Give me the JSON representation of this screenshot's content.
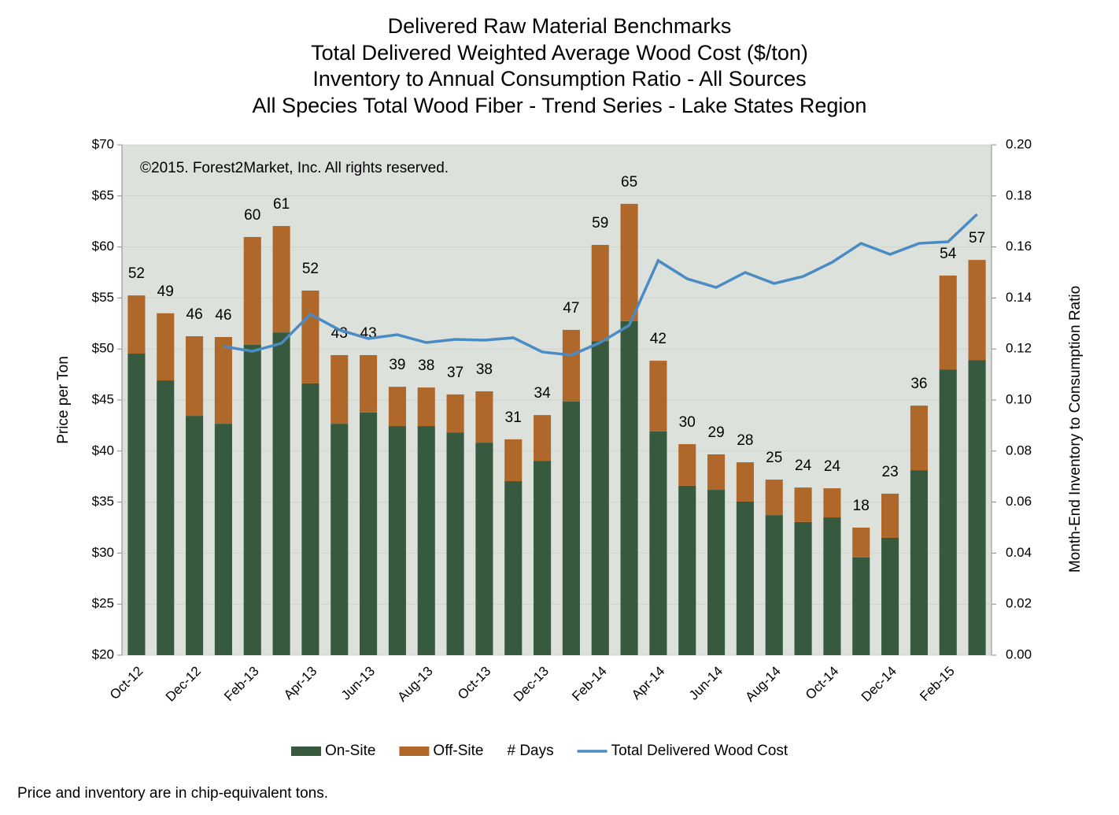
{
  "chart_data": {
    "type": "bar_line",
    "title": [
      "Delivered Raw Material Benchmarks",
      "Total Delivered Weighted Average Wood Cost ($/ton)",
      "Inventory to Annual Consumption Ratio - All Sources",
      "All Species Total Wood Fiber - Trend Series - Lake States Region"
    ],
    "annotation": "©2015. Forest2Market, Inc. All rights reserved.",
    "footnote": "Price and inventory are in chip-equivalent tons.",
    "ylabel": "Price per Ton",
    "y2label": "Month-End Inventory to Consumption Ratio",
    "categories": [
      "Oct-12",
      null,
      "Dec-12",
      null,
      "Feb-13",
      null,
      "Apr-13",
      null,
      "Jun-13",
      null,
      "Aug-13",
      null,
      "Oct-13",
      null,
      "Dec-13",
      null,
      "Feb-14",
      null,
      "Apr-14",
      null,
      "Jun-14",
      null,
      "Aug-14",
      null,
      "Oct-14",
      null,
      "Dec-14",
      null,
      "Feb-15",
      null
    ],
    "ylim": [
      20,
      70
    ],
    "yticks": [
      {
        "value": 20,
        "label": "$20"
      },
      {
        "value": 25,
        "label": "$25"
      },
      {
        "value": 30,
        "label": "$30"
      },
      {
        "value": 35,
        "label": "$35"
      },
      {
        "value": 40,
        "label": "$40"
      },
      {
        "value": 45,
        "label": "$45"
      },
      {
        "value": 50,
        "label": "$50"
      },
      {
        "value": 55,
        "label": "$55"
      },
      {
        "value": 60,
        "label": "$60"
      },
      {
        "value": 65,
        "label": "$65"
      },
      {
        "value": 70,
        "label": "$70"
      }
    ],
    "y2lim": [
      0,
      0.2
    ],
    "y2ticks": [
      {
        "value": 0,
        "label": "0.00"
      },
      {
        "value": 0.02,
        "label": "0.02"
      },
      {
        "value": 0.04,
        "label": "0.04"
      },
      {
        "value": 0.06,
        "label": "0.06"
      },
      {
        "value": 0.08,
        "label": "0.08"
      },
      {
        "value": 0.1,
        "label": "0.10"
      },
      {
        "value": 0.12,
        "label": "0.12"
      },
      {
        "value": 0.14,
        "label": "0.14"
      },
      {
        "value": 0.16,
        "label": "0.16"
      },
      {
        "value": 0.18,
        "label": "0.18"
      },
      {
        "value": 0.2,
        "label": "0.20"
      }
    ],
    "grid": true,
    "series": [
      {
        "name": "On-Site",
        "kind": "stacked-bar",
        "axis": "y2",
        "color": "#375a3e",
        "values": [
          0.1182,
          0.1077,
          0.0938,
          0.0907,
          0.1216,
          0.1265,
          0.1065,
          0.0907,
          0.0951,
          0.0898,
          0.0898,
          0.0873,
          0.0833,
          0.0682,
          0.0762,
          0.0994,
          0.1231,
          0.1309,
          0.0877,
          0.0664,
          0.0648,
          0.0602,
          0.0549,
          0.0522,
          0.054,
          0.0383,
          0.046,
          0.0725,
          0.112,
          0.1157
        ]
      },
      {
        "name": "Off-Site",
        "kind": "stacked-bar",
        "axis": "y2",
        "color": "#b0672a",
        "values": [
          0.0228,
          0.0263,
          0.0312,
          0.034,
          0.0423,
          0.0417,
          0.0364,
          0.0269,
          0.0225,
          0.0154,
          0.0151,
          0.0149,
          0.0201,
          0.0164,
          0.0179,
          0.0281,
          0.0377,
          0.046,
          0.0277,
          0.0163,
          0.0139,
          0.0154,
          0.0139,
          0.0135,
          0.0114,
          0.0117,
          0.0173,
          0.0253,
          0.0368,
          0.0392
        ]
      },
      {
        "name": "# Days",
        "kind": "label",
        "values": [
          52,
          49,
          46,
          46,
          60,
          61,
          52,
          43,
          43,
          39,
          38,
          37,
          38,
          31,
          34,
          47,
          59,
          65,
          42,
          30,
          29,
          28,
          25,
          24,
          24,
          18,
          23,
          36,
          54,
          57
        ]
      },
      {
        "name": "Total Delivered Wood Cost",
        "kind": "line",
        "axis": "y",
        "color": "#4a8bc4",
        "values": [
          null,
          null,
          null,
          50.25,
          49.78,
          50.56,
          53.41,
          51.87,
          51.02,
          51.4,
          50.63,
          50.94,
          50.86,
          51.1,
          49.71,
          49.4,
          50.63,
          52.33,
          58.66,
          56.88,
          56.03,
          57.5,
          56.42,
          57.11,
          58.5,
          60.35,
          59.27,
          60.35,
          60.51,
          63.2
        ]
      }
    ]
  }
}
